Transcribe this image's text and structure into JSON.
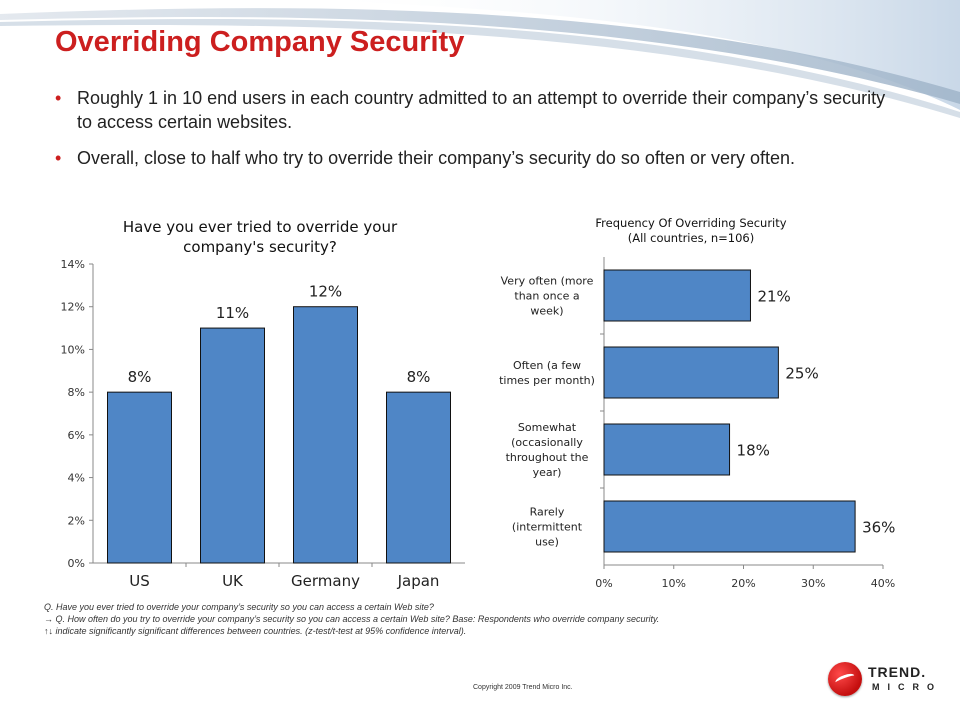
{
  "slide": {
    "title": "Overriding Company Security",
    "bullets": [
      "Roughly 1 in 10 end users in each country admitted to an attempt to override their company’s security to access certain websites.",
      "Overall, close to half who try to override their company’s security do so often or very often."
    ],
    "notes": [
      "Q. Have you ever tried to override your company’s security so you can access a certain Web site?",
      "→ Q. How often do you try to override your company’s security so you can access a certain Web site? Base: Respondents who override company security.",
      "↑↓ indicate significantly significant differences between countries. (z-test/t-test at 95% confidence interval)."
    ],
    "copyright": "Copyright 2009   Trend Micro Inc.",
    "logo": {
      "word1": "TREND.",
      "word2": "MICRO"
    },
    "colors": {
      "title": "#cc1f1f",
      "bar": "#4f86c6",
      "bar_border": "#111111"
    }
  },
  "chart_data": [
    {
      "type": "bar",
      "title_lines": [
        "Have you ever tried to override your",
        "company's security?"
      ],
      "categories": [
        "US",
        "UK",
        "Germany",
        "Japan"
      ],
      "values": [
        8,
        11,
        12,
        8
      ],
      "data_labels": [
        "8%",
        "11%",
        "12%",
        "8%"
      ],
      "ylim": [
        0,
        14
      ],
      "yticks": [
        "0%",
        "2%",
        "4%",
        "6%",
        "8%",
        "10%",
        "12%",
        "14%"
      ],
      "grid": false
    },
    {
      "type": "bar",
      "orientation": "horizontal",
      "title_lines": [
        "Frequency Of Overriding Security",
        "(All countries, n=106)"
      ],
      "categories": [
        [
          "Very often (more",
          "than once a",
          "week)"
        ],
        [
          "Often (a few",
          "times per month)"
        ],
        [
          "Somewhat",
          "(occasionally",
          "throughout the",
          "year)"
        ],
        [
          "Rarely",
          "(intermittent",
          "use)"
        ]
      ],
      "values": [
        21,
        25,
        18,
        36
      ],
      "data_labels": [
        "21%",
        "25%",
        "18%",
        "36%"
      ],
      "xlim": [
        0,
        40
      ],
      "xticks": [
        "0%",
        "10%",
        "20%",
        "30%",
        "40%"
      ],
      "grid": false
    }
  ]
}
